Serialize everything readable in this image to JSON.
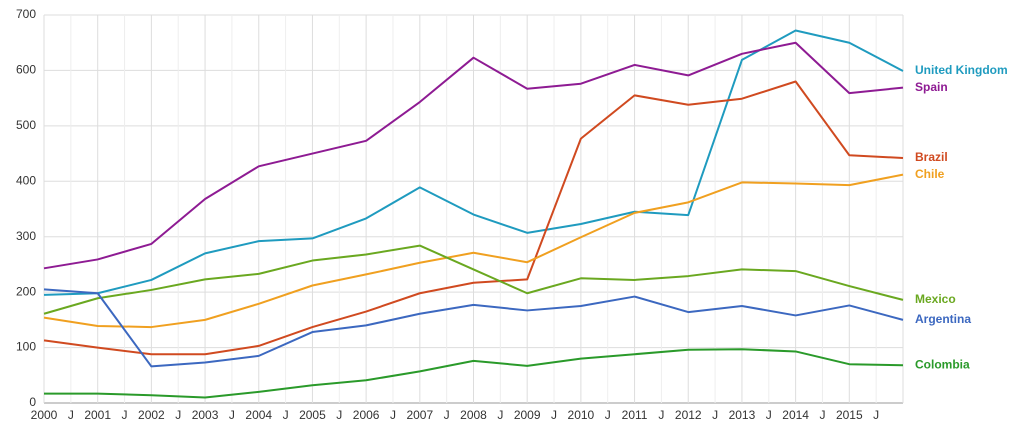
{
  "chart_data": {
    "type": "line",
    "x": [
      2000,
      2001,
      2002,
      2003,
      2004,
      2005,
      2006,
      2007,
      2008,
      2009,
      2010,
      2011,
      2012,
      2013,
      2014,
      2015,
      2016
    ],
    "series": [
      {
        "name": "United Kingdom",
        "color": "#1f9bbf",
        "values": [
          195,
          198,
          222,
          270,
          292,
          297,
          333,
          389,
          340,
          307,
          323,
          345,
          339,
          619,
          672,
          650,
          599
        ]
      },
      {
        "name": "Spain",
        "color": "#8e1b93",
        "values": [
          243,
          259,
          287,
          368,
          427,
          450,
          473,
          543,
          623,
          567,
          576,
          610,
          591,
          630,
          650,
          559,
          569
        ]
      },
      {
        "name": "Brazil",
        "color": "#d04a20",
        "values": [
          113,
          100,
          88,
          88,
          103,
          137,
          165,
          198,
          217,
          223,
          477,
          555,
          538,
          549,
          580,
          447,
          442
        ]
      },
      {
        "name": "Chile",
        "color": "#f0a020",
        "values": [
          154,
          139,
          137,
          150,
          179,
          212,
          232,
          253,
          271,
          254,
          299,
          343,
          362,
          398,
          396,
          393,
          412
        ]
      },
      {
        "name": "Mexico",
        "color": "#6aa820",
        "values": [
          161,
          189,
          204,
          223,
          233,
          257,
          268,
          284,
          241,
          198,
          225,
          222,
          229,
          241,
          238,
          211,
          186
        ]
      },
      {
        "name": "Argentina",
        "color": "#3c68c0",
        "values": [
          205,
          198,
          66,
          73,
          85,
          128,
          140,
          161,
          177,
          167,
          175,
          192,
          164,
          175,
          158,
          176,
          150
        ]
      },
      {
        "name": "Colombia",
        "color": "#2a9a2a",
        "values": [
          17,
          17,
          14,
          10,
          20,
          32,
          41,
          57,
          76,
          67,
          80,
          88,
          96,
          97,
          93,
          70,
          68
        ]
      }
    ],
    "xlim": [
      2000,
      2016
    ],
    "xticks": [
      2000,
      {
        "value": 2000.5,
        "label": "J"
      },
      2001,
      {
        "value": 2001.5,
        "label": "J"
      },
      2002,
      {
        "value": 2002.5,
        "label": "J"
      },
      2003,
      {
        "value": 2003.5,
        "label": "J"
      },
      2004,
      {
        "value": 2004.5,
        "label": "J"
      },
      2005,
      {
        "value": 2005.5,
        "label": "J"
      },
      2006,
      {
        "value": 2006.5,
        "label": "J"
      },
      2007,
      {
        "value": 2007.5,
        "label": "J"
      },
      2008,
      {
        "value": 2008.5,
        "label": "J"
      },
      2009,
      {
        "value": 2009.5,
        "label": "J"
      },
      2010,
      {
        "value": 2010.5,
        "label": "J"
      },
      2011,
      {
        "value": 2011.5,
        "label": "J"
      },
      2012,
      {
        "value": 2012.5,
        "label": "J"
      },
      2013,
      {
        "value": 2013.5,
        "label": "J"
      },
      2014,
      {
        "value": 2014.5,
        "label": "J"
      },
      2015,
      {
        "value": 2015.5,
        "label": "J"
      }
    ],
    "ylim": [
      0,
      700
    ],
    "yticks": [
      0,
      100,
      200,
      300,
      400,
      500,
      600,
      700
    ],
    "grid": true
  }
}
